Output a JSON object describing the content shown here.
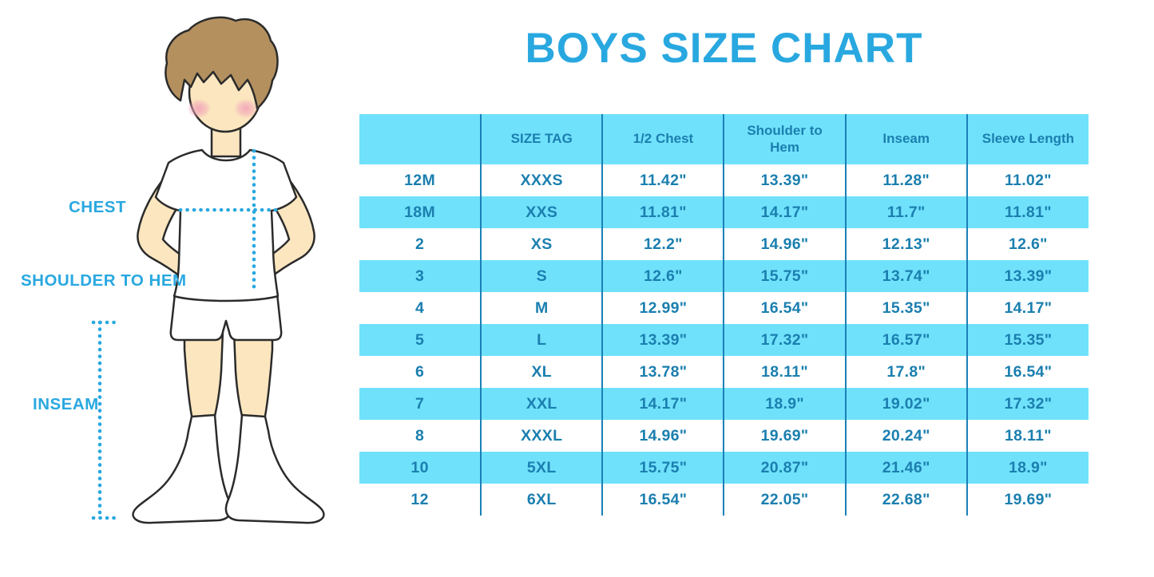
{
  "title": "BOYS SIZE CHART",
  "colors": {
    "accent": "#29A8E0",
    "stripe": "#70E1FB",
    "table_text": "#1B7FAF",
    "grid_line": "#1A80B8",
    "skin": "#FBE6BF",
    "hair": "#B4905F",
    "outline": "#2B2B2B"
  },
  "figure": {
    "chest_label": "CHEST",
    "shoulder_to_hem_label": "SHOULDER TO HEM",
    "inseam_label": "INSEAM"
  },
  "chart_data": {
    "type": "table",
    "title": "BOYS SIZE CHART",
    "columns": [
      "",
      "SIZE TAG",
      "1/2 Chest",
      "Shoulder to Hem",
      "Inseam",
      "Sleeve Length"
    ],
    "rows": [
      [
        "12M",
        "XXXS",
        "11.42\"",
        "13.39\"",
        "11.28\"",
        "11.02\""
      ],
      [
        "18M",
        "XXS",
        "11.81\"",
        "14.17\"",
        "11.7\"",
        "11.81\""
      ],
      [
        "2",
        "XS",
        "12.2\"",
        "14.96\"",
        "12.13\"",
        "12.6\""
      ],
      [
        "3",
        "S",
        "12.6\"",
        "15.75\"",
        "13.74\"",
        "13.39\""
      ],
      [
        "4",
        "M",
        "12.99\"",
        "16.54\"",
        "15.35\"",
        "14.17\""
      ],
      [
        "5",
        "L",
        "13.39\"",
        "17.32\"",
        "16.57\"",
        "15.35\""
      ],
      [
        "6",
        "XL",
        "13.78\"",
        "18.11\"",
        "17.8\"",
        "16.54\""
      ],
      [
        "7",
        "XXL",
        "14.17\"",
        "18.9\"",
        "19.02\"",
        "17.32\""
      ],
      [
        "8",
        "XXXL",
        "14.96\"",
        "19.69\"",
        "20.24\"",
        "18.11\""
      ],
      [
        "10",
        "5XL",
        "15.75\"",
        "20.87\"",
        "21.46\"",
        "18.9\""
      ],
      [
        "12",
        "6XL",
        "16.54\"",
        "22.05\"",
        "22.68\"",
        "19.69\""
      ]
    ]
  }
}
